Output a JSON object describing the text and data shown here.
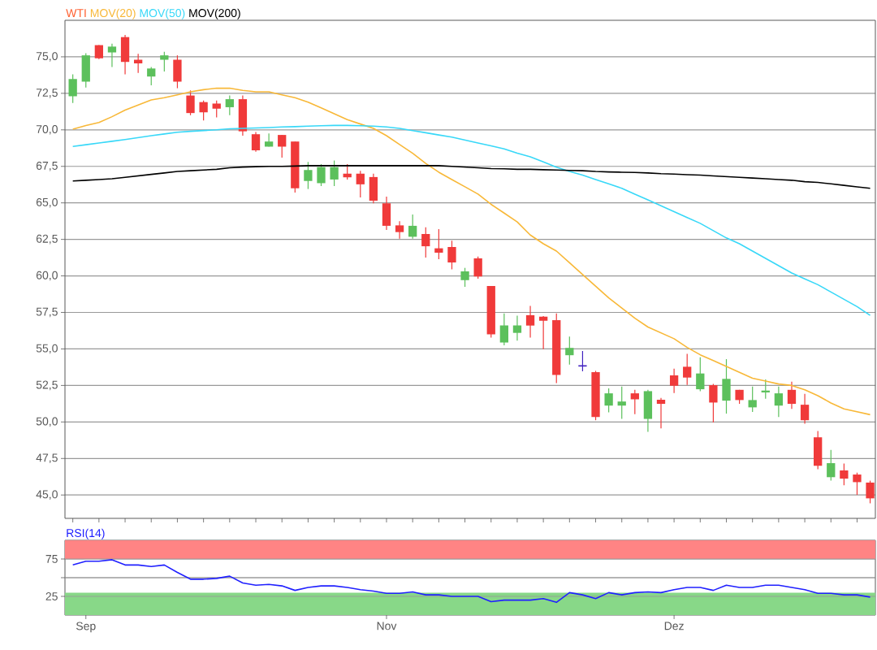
{
  "chart_data": [
    {
      "type": "candlestick",
      "categories": [
        null,
        null,
        null,
        null,
        null,
        null,
        null,
        null,
        null,
        null,
        null,
        null,
        null,
        null,
        null,
        null,
        null,
        null,
        null,
        null,
        null,
        null,
        null,
        null,
        null,
        null,
        null,
        null,
        null,
        null,
        null,
        null,
        null,
        null,
        null,
        null,
        null,
        null,
        null,
        null,
        null,
        null,
        null,
        null,
        null,
        null,
        null,
        null,
        null,
        null,
        null,
        null,
        null,
        null,
        null,
        null,
        null,
        null,
        null,
        null,
        null,
        null
      ],
      "ylim": [
        43.4,
        77.5
      ],
      "yticks": [
        {
          "value": 45,
          "label": "45,0"
        },
        {
          "value": 47.5,
          "label": "47,5"
        },
        {
          "value": 50,
          "label": "50,0"
        },
        {
          "value": 52.5,
          "label": "52,5"
        },
        {
          "value": 55,
          "label": "55,0"
        },
        {
          "value": 57.5,
          "label": "57,5"
        },
        {
          "value": 60,
          "label": "60,0"
        },
        {
          "value": 62.5,
          "label": "62,5"
        },
        {
          "value": 65,
          "label": "65,0"
        },
        {
          "value": 67.5,
          "label": "67,5"
        },
        {
          "value": 70,
          "label": "70,0"
        },
        {
          "value": 72.5,
          "label": "72,5"
        },
        {
          "value": 75,
          "label": "75,0"
        }
      ],
      "grid": "y",
      "legend": "top left",
      "tick_labels": "y",
      "series": [
        {
          "name": "WTI",
          "color": "#ff6030",
          "ohlc": [
            [
              72.3,
              73.8,
              71.84,
              73.48
            ],
            [
              73.3,
              75.25,
              72.9,
              75.1
            ],
            [
              75.8,
              75.8,
              74.85,
              74.9
            ],
            [
              75.3,
              75.9,
              74.3,
              75.7
            ],
            [
              76.35,
              76.5,
              73.8,
              74.65
            ],
            [
              74.8,
              75.2,
              73.9,
              74.55
            ],
            [
              73.65,
              74.3,
              73.05,
              74.2
            ],
            [
              74.8,
              75.35,
              74.0,
              75.1
            ],
            [
              74.8,
              75.1,
              72.85,
              73.3
            ],
            [
              72.35,
              72.7,
              71.0,
              71.15
            ],
            [
              71.9,
              72.0,
              70.65,
              71.2
            ],
            [
              71.8,
              72.0,
              70.85,
              71.45
            ],
            [
              71.55,
              72.35,
              71.0,
              72.1
            ],
            [
              72.1,
              72.35,
              69.6,
              69.9
            ],
            [
              69.7,
              69.85,
              68.5,
              68.6
            ],
            [
              68.85,
              69.75,
              68.85,
              69.2
            ],
            [
              69.65,
              69.65,
              68.1,
              68.85
            ],
            [
              69.2,
              69.2,
              65.7,
              66.0
            ],
            [
              66.5,
              67.8,
              65.95,
              67.25
            ],
            [
              66.35,
              67.65,
              66.15,
              67.45
            ],
            [
              66.6,
              67.9,
              66.15,
              67.45
            ],
            [
              67.0,
              67.65,
              66.6,
              66.75
            ],
            [
              67.0,
              67.2,
              65.37,
              66.27
            ],
            [
              66.77,
              67.0,
              64.97,
              65.15
            ],
            [
              64.97,
              65.43,
              63.15,
              63.43
            ],
            [
              63.46,
              63.74,
              62.55,
              63.0
            ],
            [
              62.68,
              64.2,
              62.55,
              63.43
            ],
            [
              62.87,
              63.33,
              61.25,
              62.03
            ],
            [
              61.89,
              63.2,
              61.14,
              61.59
            ],
            [
              61.98,
              62.41,
              60.45,
              60.92
            ],
            [
              59.71,
              60.55,
              59.25,
              60.31
            ],
            [
              61.2,
              61.33,
              59.81,
              59.96
            ],
            [
              59.31,
              59.31,
              55.78,
              56.0
            ],
            [
              55.44,
              57.43,
              55.25,
              56.61
            ],
            [
              56.1,
              57.28,
              55.57,
              56.61
            ],
            [
              57.31,
              57.95,
              55.78,
              56.6
            ],
            [
              57.21,
              57.25,
              54.98,
              56.93
            ],
            [
              56.97,
              57.43,
              52.66,
              53.22
            ],
            [
              54.57,
              55.85,
              53.92,
              55.07
            ],
            [
              53.84,
              54.86,
              53.47,
              53.84
            ],
            [
              53.41,
              53.5,
              50.12,
              50.34
            ],
            [
              51.12,
              52.3,
              50.66,
              51.96
            ],
            [
              51.12,
              52.43,
              50.21,
              51.4
            ],
            [
              51.96,
              52.2,
              50.53,
              51.55
            ],
            [
              50.21,
              52.2,
              49.32,
              52.11
            ],
            [
              51.52,
              51.65,
              49.56,
              51.24
            ],
            [
              53.19,
              53.65,
              51.98,
              52.48
            ],
            [
              53.78,
              54.66,
              52.54,
              53.04
            ],
            [
              52.24,
              54.43,
              52.11,
              53.32
            ],
            [
              52.52,
              52.61,
              49.97,
              51.33
            ],
            [
              51.46,
              54.3,
              50.57,
              52.95
            ],
            [
              52.2,
              52.2,
              51.24,
              51.5
            ],
            [
              51.0,
              52.43,
              50.68,
              51.5
            ],
            [
              52.02,
              52.91,
              51.59,
              52.15
            ],
            [
              51.12,
              52.43,
              50.34,
              51.96
            ],
            [
              52.2,
              52.76,
              50.9,
              51.24
            ],
            [
              51.18,
              51.92,
              49.88,
              50.12
            ],
            [
              48.95,
              49.38,
              46.77,
              47.0
            ],
            [
              46.22,
              48.08,
              45.98,
              47.18
            ],
            [
              46.68,
              47.15,
              45.66,
              46.12
            ],
            [
              46.4,
              46.53,
              45.01,
              45.88
            ],
            [
              45.85,
              45.98,
              44.43,
              44.77
            ]
          ],
          "colors": [
            "#5cc05c",
            "#5cc05c",
            "#f03a3a",
            "#5cc05c",
            "#f03a3a",
            "#f03a3a",
            "#5cc05c",
            "#5cc05c",
            "#f03a3a",
            "#f03a3a",
            "#f03a3a",
            "#f03a3a",
            "#5cc05c",
            "#f03a3a",
            "#f03a3a",
            "#5cc05c",
            "#f03a3a",
            "#f03a3a",
            "#5cc05c",
            "#5cc05c",
            "#5cc05c",
            "#f03a3a",
            "#f03a3a",
            "#f03a3a",
            "#f03a3a",
            "#f03a3a",
            "#5cc05c",
            "#f03a3a",
            "#f03a3a",
            "#f03a3a",
            "#5cc05c",
            "#f03a3a",
            "#f03a3a",
            "#5cc05c",
            "#5cc05c",
            "#f03a3a",
            "#f03a3a",
            "#f03a3a",
            "#5cc05c",
            "#4020c0",
            "#f03a3a",
            "#5cc05c",
            "#5cc05c",
            "#f03a3a",
            "#5cc05c",
            "#f03a3a",
            "#f03a3a",
            "#f03a3a",
            "#5cc05c",
            "#f03a3a",
            "#5cc05c",
            "#f03a3a",
            "#5cc05c",
            "#5cc05c",
            "#5cc05c",
            "#f03a3a",
            "#f03a3a",
            "#f03a3a",
            "#5cc05c",
            "#f03a3a",
            "#f03a3a",
            "#f03a3a"
          ]
        },
        {
          "name": "MOV(20)",
          "type": "line",
          "color": "#f8b838",
          "values": [
            70.05,
            70.3,
            70.5,
            70.9,
            71.35,
            71.7,
            72.05,
            72.2,
            72.4,
            72.6,
            72.75,
            72.85,
            72.85,
            72.7,
            72.6,
            72.6,
            72.4,
            72.2,
            71.9,
            71.5,
            71.1,
            70.7,
            70.4,
            70.1,
            69.6,
            69.0,
            68.4,
            67.7,
            67.1,
            66.6,
            66.1,
            65.6,
            64.9,
            64.3,
            63.7,
            62.8,
            62.2,
            61.7,
            60.9,
            60.1,
            59.3,
            58.5,
            57.8,
            57.1,
            56.5,
            56.1,
            55.7,
            55.1,
            54.6,
            54.2,
            53.8,
            53.4,
            53.0,
            52.8,
            52.6,
            52.5,
            52.2,
            51.8,
            51.3,
            50.9,
            50.7,
            50.5
          ]
        },
        {
          "name": "MOV(50)",
          "type": "line",
          "color": "#38d8f8",
          "values": [
            68.86,
            68.98,
            69.1,
            69.22,
            69.34,
            69.47,
            69.6,
            69.72,
            69.84,
            69.9,
            69.95,
            70.0,
            70.07,
            70.1,
            70.13,
            70.16,
            70.2,
            70.22,
            70.25,
            70.28,
            70.3,
            70.3,
            70.28,
            70.25,
            70.2,
            70.1,
            69.95,
            69.8,
            69.65,
            69.5,
            69.3,
            69.1,
            68.9,
            68.7,
            68.4,
            68.15,
            67.8,
            67.45,
            67.15,
            66.9,
            66.6,
            66.3,
            66.0,
            65.6,
            65.2,
            64.8,
            64.4,
            64.0,
            63.6,
            63.1,
            62.6,
            62.2,
            61.7,
            61.2,
            60.7,
            60.2,
            59.8,
            59.4,
            58.9,
            58.4,
            57.9,
            57.3
          ]
        },
        {
          "name": "MOV(200)",
          "type": "line",
          "color": "#000000",
          "values": [
            66.5,
            66.55,
            66.6,
            66.65,
            66.75,
            66.85,
            66.95,
            67.05,
            67.15,
            67.2,
            67.25,
            67.3,
            67.4,
            67.45,
            67.48,
            67.5,
            67.5,
            67.52,
            67.55,
            67.55,
            67.55,
            67.55,
            67.55,
            67.55,
            67.55,
            67.55,
            67.55,
            67.55,
            67.55,
            67.5,
            67.45,
            67.4,
            67.35,
            67.33,
            67.3,
            67.3,
            67.27,
            67.25,
            67.22,
            67.2,
            67.15,
            67.12,
            67.1,
            67.08,
            67.05,
            67.0,
            66.97,
            66.93,
            66.9,
            66.85,
            66.8,
            66.75,
            66.7,
            66.65,
            66.6,
            66.55,
            66.45,
            66.4,
            66.3,
            66.2,
            66.1,
            66.0
          ]
        }
      ]
    },
    {
      "type": "line",
      "categories": [
        null,
        "Sep",
        null,
        null,
        null,
        null,
        null,
        null,
        null,
        null,
        null,
        null,
        null,
        null,
        null,
        null,
        null,
        null,
        null,
        null,
        null,
        null,
        null,
        null,
        "Nov",
        null,
        null,
        null,
        null,
        null,
        null,
        null,
        null,
        null,
        null,
        null,
        null,
        null,
        null,
        null,
        null,
        null,
        null,
        null,
        null,
        null,
        "Dez",
        null,
        null,
        null,
        null,
        null,
        null,
        null,
        null,
        null,
        null,
        null,
        null,
        null,
        null,
        null
      ],
      "ylim": [
        0,
        100
      ],
      "yticks": [
        25,
        {
          "value": 50,
          "label": null
        },
        75
      ],
      "grid": "y",
      "legend": "top left",
      "bands": [
        {
          "axis": "y",
          "from": 75,
          "to": 100,
          "color": "#ff8484"
        },
        {
          "axis": "y",
          "from": 0,
          "to": 30,
          "color": "#88d888"
        }
      ],
      "series": [
        {
          "name": "RSI(14)",
          "color": "#2020ff",
          "values": [
            67,
            72,
            72,
            74,
            67,
            67,
            65,
            67,
            57,
            48,
            48,
            49,
            52,
            43,
            40,
            41,
            39,
            33,
            37,
            39,
            39,
            37,
            34,
            32,
            29,
            29,
            31,
            27,
            27,
            25,
            25,
            25,
            18,
            20,
            20,
            20,
            22,
            17,
            30,
            27,
            22,
            30,
            27,
            30,
            31,
            30,
            34,
            37,
            37,
            33,
            40,
            37,
            37,
            40,
            40,
            37,
            34,
            29,
            29,
            27,
            27,
            24
          ]
        }
      ]
    }
  ]
}
